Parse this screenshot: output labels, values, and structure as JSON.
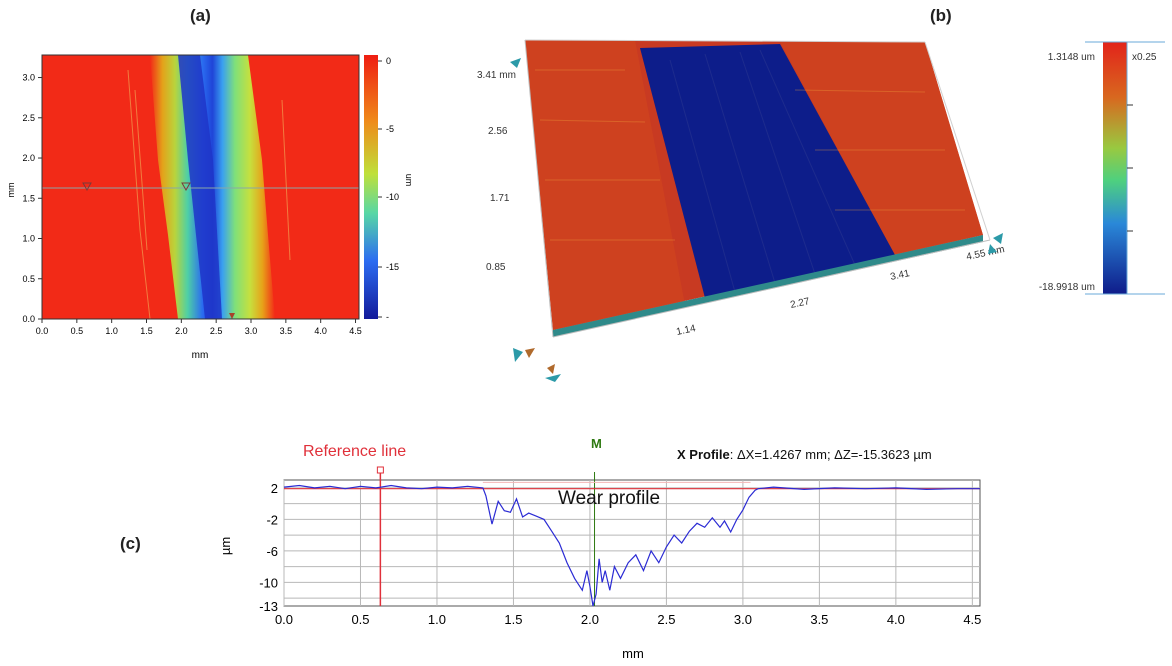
{
  "panels": {
    "a": {
      "label": "(a)",
      "y_axis": {
        "label": "mm",
        "ticks": [
          "3.0",
          "2.5",
          "2.0",
          "1.5",
          "1.0",
          "0.5",
          "0.0"
        ]
      },
      "x_axis": {
        "label": "mm",
        "ticks": [
          "0.0",
          "0.5",
          "1.0",
          "1.5",
          "2.0",
          "2.5",
          "3.0",
          "3.5",
          "4.0",
          "4.5"
        ]
      },
      "colorbar": {
        "label": "um",
        "ticks": [
          "0",
          "-5",
          "-10",
          "-15",
          "-"
        ]
      }
    },
    "b": {
      "label": "(b)",
      "depth_axis": {
        "corner_label": "3.41 mm",
        "ticks": [
          "2.56",
          "1.71",
          "0.85"
        ]
      },
      "width_axis": {
        "end_label": "4.55 mm",
        "ticks": [
          "1.14",
          "2.27",
          "3.41"
        ]
      },
      "scale": {
        "max": "1.3148 um",
        "min": "-18.9918 um",
        "factor": "x0.25"
      }
    },
    "c": {
      "label": "(c)",
      "reference_line": "Reference line",
      "marker": "M",
      "header": {
        "title": "X Profile",
        "values": ": ΔX=1.4267 mm; ΔZ=-15.3623 µm"
      },
      "annotation": "Wear profile",
      "ylabel": "µm",
      "xlabel": "mm",
      "y_ticks": [
        "2",
        "-2",
        "-6",
        "-10",
        "-13"
      ],
      "x_ticks": [
        "0.0",
        "0.5",
        "1.0",
        "1.5",
        "2.0",
        "2.5",
        "3.0",
        "3.5",
        "4.0",
        "4.5"
      ]
    }
  },
  "colors": {
    "surface_red": "#f22a17",
    "wear_blue": "#0d1d8a",
    "profile_line": "#2b2bd4",
    "reference_red": "#e0303a",
    "marker_green": "#2f7a12"
  },
  "chart_data": {
    "type": "line",
    "title": "X Profile",
    "xlabel": "mm",
    "ylabel": "µm",
    "xlim": [
      0.0,
      4.55
    ],
    "ylim": [
      -13,
      3
    ],
    "reference_x": 0.63,
    "marker_x": 2.03,
    "series": [
      {
        "x": [
          0.0,
          0.1,
          0.2,
          0.3,
          0.4,
          0.5,
          0.6,
          0.7,
          0.8,
          0.9,
          1.0,
          1.1,
          1.2,
          1.3,
          1.32,
          1.36,
          1.4,
          1.44,
          1.48,
          1.52,
          1.56,
          1.6,
          1.65,
          1.7,
          1.75,
          1.8,
          1.85,
          1.9,
          1.95,
          1.98,
          2.0,
          2.02,
          2.04,
          2.06,
          2.08,
          2.1,
          2.13,
          2.16,
          2.2,
          2.25,
          2.3,
          2.35,
          2.4,
          2.45,
          2.5,
          2.55,
          2.6,
          2.65,
          2.7,
          2.75,
          2.8,
          2.85,
          2.88,
          2.92,
          2.96,
          3.0,
          3.04,
          3.08,
          3.1,
          3.2,
          3.4,
          3.6,
          3.8,
          4.0,
          4.2,
          4.4,
          4.55
        ],
        "y": [
          2.1,
          2.3,
          2.0,
          2.2,
          1.9,
          2.2,
          2.0,
          2.3,
          2.0,
          1.9,
          2.1,
          2.0,
          2.2,
          2.0,
          1.0,
          -2.6,
          0.3,
          -0.9,
          -1.1,
          0.6,
          -1.7,
          -1.2,
          -1.6,
          -2.0,
          -3.5,
          -5.0,
          -7.5,
          -9.5,
          -11.0,
          -8.5,
          -10.5,
          -13.0,
          -11.5,
          -7.0,
          -10.0,
          -8.5,
          -11.0,
          -8.0,
          -9.5,
          -7.5,
          -6.5,
          -8.5,
          -6.0,
          -7.5,
          -5.5,
          -4.0,
          -5.0,
          -3.5,
          -2.5,
          -3.0,
          -1.8,
          -3.0,
          -2.2,
          -3.6,
          -2.0,
          -0.8,
          0.8,
          1.7,
          1.9,
          2.1,
          1.8,
          2.0,
          1.9,
          2.0,
          1.8,
          1.9,
          1.9
        ]
      }
    ]
  }
}
